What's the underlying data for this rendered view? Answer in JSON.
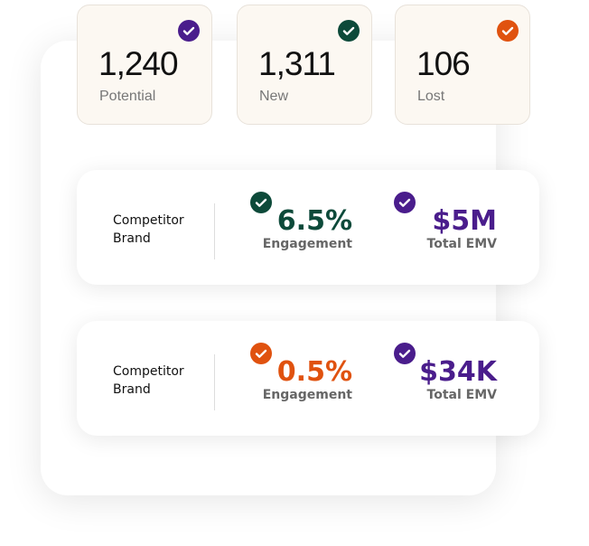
{
  "stats": [
    {
      "value": "1,240",
      "label": "Potential"
    },
    {
      "value": "1,311",
      "label": "New"
    },
    {
      "value": "106",
      "label": "Lost"
    }
  ],
  "comparisons": [
    {
      "brand": "Competitor Brand",
      "engagement": "6.5%",
      "engagement_label": "Engagement",
      "emv": "$5M",
      "emv_label": "Total EMV"
    },
    {
      "brand": "Competitor Brand",
      "engagement": "0.5%",
      "engagement_label": "Engagement",
      "emv": "$34K",
      "emv_label": "Total EMV"
    }
  ]
}
